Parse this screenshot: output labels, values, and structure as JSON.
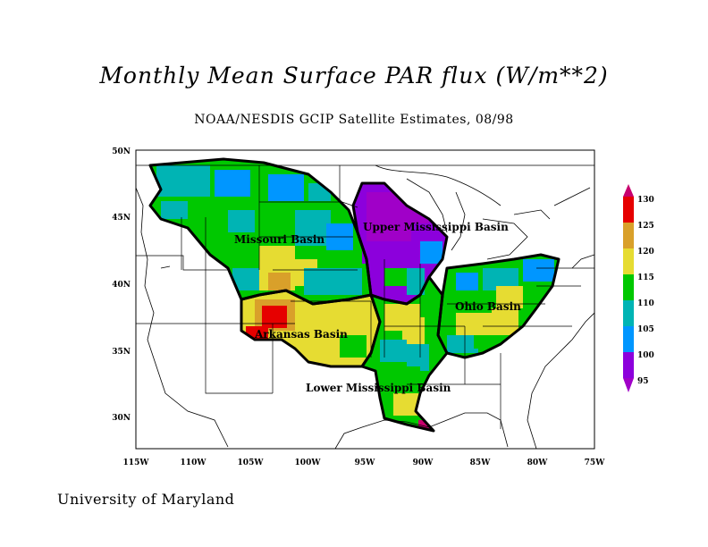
{
  "title": "Monthly Mean Surface PAR flux (W/m**2)",
  "subtitle": "NOAA/NESDIS GCIP Satellite Estimates, 08/98",
  "footer": "University of Maryland",
  "map": {
    "lon_range": [
      -115,
      -75
    ],
    "lat_range": [
      27.5,
      50
    ],
    "x_ticks": [
      "115W",
      "110W",
      "105W",
      "100W",
      "95W",
      "90W",
      "85W",
      "80W",
      "75W"
    ],
    "y_ticks": [
      "50N",
      "45N",
      "40N",
      "35N",
      "30N"
    ],
    "basins": [
      {
        "name": "Missouri Basin"
      },
      {
        "name": "Upper Mississippi Basin"
      },
      {
        "name": "Ohio Basin"
      },
      {
        "name": "Arkansas Basin"
      },
      {
        "name": "Lower Mississippi Basin"
      }
    ]
  },
  "colorbar": {
    "labels": [
      "130",
      "125",
      "120",
      "115",
      "110",
      "105",
      "100",
      "95"
    ],
    "colors": [
      "#c8006e",
      "#e60000",
      "#d9a02a",
      "#e6dc32",
      "#00c800",
      "#00b4b4",
      "#0096ff",
      "#8c00dc",
      "#a000c8"
    ]
  }
}
